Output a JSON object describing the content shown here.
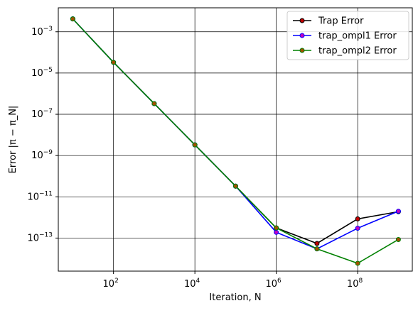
{
  "chart_data": {
    "type": "line",
    "x": [
      10,
      100,
      1000,
      10000,
      100000,
      1000000,
      10000000,
      100000000,
      1000000000
    ],
    "series": [
      {
        "name": "Trap Error",
        "line_color": "#000000",
        "marker_color": "#c00000",
        "values": [
          0.0042,
          3.3e-05,
          3.3e-07,
          3.3e-09,
          3.3e-11,
          3.1e-13,
          5.5e-14,
          8.5e-13,
          1.9e-12
        ]
      },
      {
        "name": "trap_ompl1 Error",
        "line_color": "#0000ff",
        "marker_color": "#c000c0",
        "values": [
          0.0042,
          3.3e-05,
          3.3e-07,
          3.3e-09,
          3.3e-11,
          1.9e-13,
          3e-14,
          3e-13,
          2e-12
        ]
      },
      {
        "name": "trap_ompl2 Error",
        "line_color": "#008000",
        "marker_color": "#a05000",
        "values": [
          0.0042,
          3.3e-05,
          3.3e-07,
          3.3e-09,
          3.3e-11,
          3.1e-13,
          3e-14,
          6e-15,
          8.5e-14
        ]
      }
    ],
    "x_scale": "log",
    "y_scale": "log",
    "xlim": [
      4.4,
      2200000000.0
    ],
    "ylim": [
      2.5e-15,
      0.0145
    ],
    "x_ticks": [
      {
        "value": 100,
        "label": "10",
        "exp": "2"
      },
      {
        "value": 10000,
        "label": "10",
        "exp": "4"
      },
      {
        "value": 1000000,
        "label": "10",
        "exp": "6"
      },
      {
        "value": 100000000,
        "label": "10",
        "exp": "8"
      }
    ],
    "y_ticks": [
      {
        "value": 0.001,
        "label": "10",
        "exp": "−3"
      },
      {
        "value": 1e-05,
        "label": "10",
        "exp": "−5"
      },
      {
        "value": 1e-07,
        "label": "10",
        "exp": "−7"
      },
      {
        "value": 1e-09,
        "label": "10",
        "exp": "−9"
      },
      {
        "value": 1e-11,
        "label": "10",
        "exp": "−11"
      },
      {
        "value": 1e-13,
        "label": "10",
        "exp": "−13"
      }
    ],
    "xlabel": "Iteration, N",
    "ylabel": "Error |π − π_N|",
    "grid": true,
    "legend_position": "top-right"
  }
}
